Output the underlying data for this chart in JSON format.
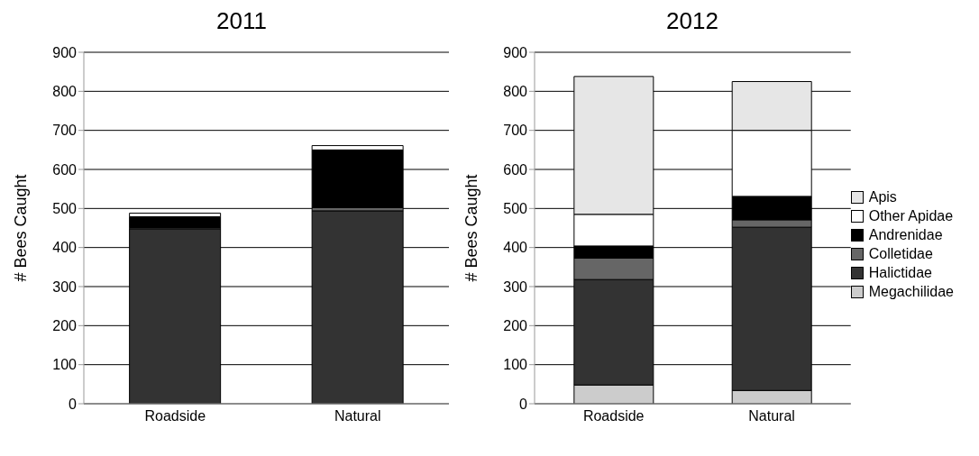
{
  "chart_data": [
    {
      "type": "bar",
      "title": "2011",
      "ylabel": "# Bees Caught",
      "categories": [
        "Roadside",
        "Natural"
      ],
      "stacked": true,
      "ylim": [
        0,
        900
      ],
      "yticks": [
        0,
        100,
        200,
        300,
        400,
        500,
        600,
        700,
        800,
        900
      ],
      "grid": "y",
      "legend": false,
      "series": [
        {
          "color": "#cccccc",
          "values": [
            null,
            null
          ]
        },
        {
          "color": "#333333",
          "values": [
            448,
            494
          ]
        },
        {
          "color": "#666666",
          "values": [
            3,
            8
          ]
        },
        {
          "color": "#000000",
          "values": [
            28,
            148
          ]
        },
        {
          "color": "#ffffff",
          "values": [
            9,
            11
          ]
        },
        {
          "color": "#e6e6e6",
          "values": [
            0,
            0
          ]
        }
      ]
    },
    {
      "type": "bar",
      "title": "2012",
      "ylabel": "# Bees Caught",
      "categories": [
        "Roadside",
        "Natural"
      ],
      "stacked": true,
      "ylim": [
        0,
        900
      ],
      "yticks": [
        0,
        100,
        200,
        300,
        400,
        500,
        600,
        700,
        800,
        900
      ],
      "grid": "y",
      "legend": "right",
      "series": [
        {
          "name": "Megachilidae",
          "color": "#cccccc",
          "values": [
            48,
            34
          ]
        },
        {
          "name": "Halictidae",
          "color": "#333333",
          "values": [
            270,
            418
          ]
        },
        {
          "name": "Colletidae",
          "color": "#666666",
          "values": [
            55,
            19
          ]
        },
        {
          "name": "Andrenidae",
          "color": "#000000",
          "values": [
            31,
            60
          ]
        },
        {
          "name": "Other Apidae",
          "color": "#ffffff",
          "values": [
            81,
            169
          ]
        },
        {
          "name": "Apis",
          "color": "#e6e6e6",
          "values": [
            353,
            125
          ]
        }
      ]
    }
  ]
}
